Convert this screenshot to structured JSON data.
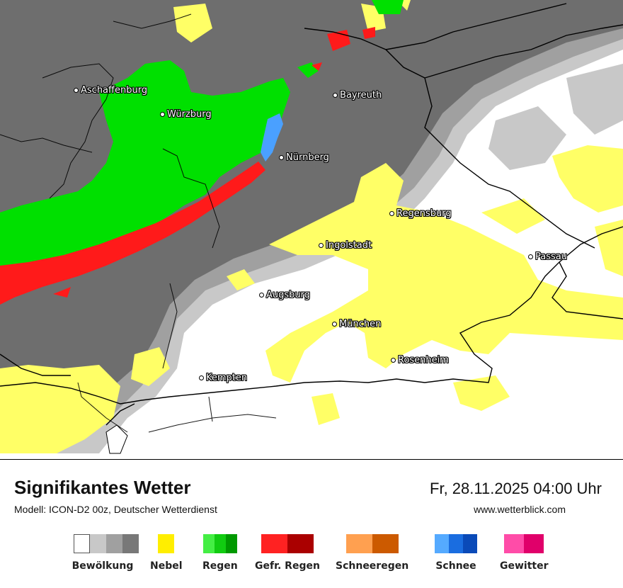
{
  "title": "Signifikantes Wetter",
  "subtitle": "Modell: ICON-D2 00z, Deutscher Wetterdienst",
  "datetime": "Fr, 28.11.2025 04:00 Uhr",
  "website": "www.wetterblick.com",
  "colors": {
    "cloud_dark": "#6e6e6e",
    "cloud_mid": "#a0a0a0",
    "cloud_light": "#c8c8c8",
    "fog": "#ffff66",
    "rain": "#00e000",
    "freezing_rain": "#ff1a1a",
    "snow": "#4aa0ff",
    "border_lines": "#000000"
  },
  "cities": [
    {
      "name": "Aschaffenburg"
    },
    {
      "name": "Würzburg"
    },
    {
      "name": "Bayreuth"
    },
    {
      "name": "Nürnberg"
    },
    {
      "name": "Regensburg"
    },
    {
      "name": "Ingolstadt"
    },
    {
      "name": "Passau"
    },
    {
      "name": "Augsburg"
    },
    {
      "name": "München"
    },
    {
      "name": "Rosenheim"
    },
    {
      "name": "Kempten"
    }
  ],
  "legend": [
    {
      "label": "Bewölkung",
      "colors": [
        "#ffffff",
        "#c8c8c8",
        "#a0a0a0",
        "#787878"
      ]
    },
    {
      "label": "Nebel",
      "colors": [
        "#ffee00"
      ]
    },
    {
      "label": "Regen",
      "colors": [
        "#44ee44",
        "#11cc11",
        "#009900"
      ]
    },
    {
      "label": "Gefr. Regen",
      "colors": [
        "#ff2222",
        "#aa0000"
      ]
    },
    {
      "label": "Schneeregen",
      "colors": [
        "#ffa050",
        "#cc5a00"
      ]
    },
    {
      "label": "Schnee",
      "colors": [
        "#55aaff",
        "#1a6de0",
        "#0a4ab8"
      ]
    },
    {
      "label": "Gewitter",
      "colors": [
        "#ff4ca8",
        "#e0006a"
      ]
    }
  ]
}
